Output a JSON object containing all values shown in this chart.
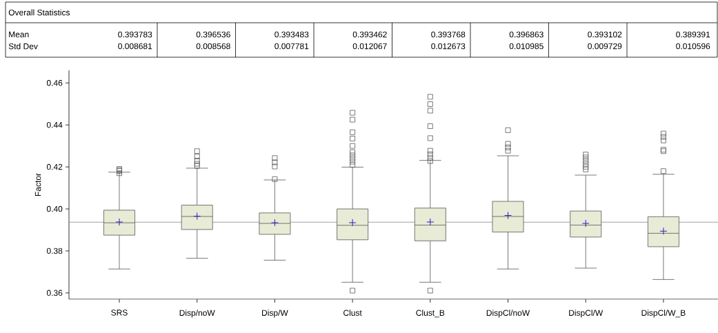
{
  "chart_data": {
    "type": "box",
    "ylabel": "Factor",
    "categories": [
      "SRS",
      "Disp/noW",
      "Disp/W",
      "Clust",
      "Clust_B",
      "DispCl/noW",
      "DispCl/W",
      "DispCl/W_B"
    ],
    "series": [
      {
        "color": "#e8ebd5",
        "boxes": [
          {
            "low": 0.3714,
            "q1": 0.3875,
            "median": 0.3934,
            "q3": 0.3994,
            "high": 0.4175,
            "mean": 0.393783,
            "outliers": [
              0.419,
              0.4185,
              0.418,
              0.417
            ]
          },
          {
            "low": 0.3765,
            "q1": 0.3902,
            "median": 0.3964,
            "q3": 0.4018,
            "high": 0.4194,
            "mean": 0.396536,
            "outliers": [
              0.4275,
              0.425,
              0.423,
              0.4215,
              0.4205
            ]
          },
          {
            "low": 0.3756,
            "q1": 0.3879,
            "median": 0.3931,
            "q3": 0.3981,
            "high": 0.4138,
            "mean": 0.393483,
            "outliers": [
              0.4242,
              0.4222,
              0.4202,
              0.4142
            ]
          },
          {
            "low": 0.3651,
            "q1": 0.3853,
            "median": 0.3922,
            "q3": 0.4,
            "high": 0.4199,
            "mean": 0.393462,
            "outliers": [
              0.3611,
              0.4458,
              0.4425,
              0.4365,
              0.4335,
              0.43,
              0.427,
              0.4255,
              0.424,
              0.4225,
              0.421
            ]
          },
          {
            "low": 0.3651,
            "q1": 0.3848,
            "median": 0.3923,
            "q3": 0.4004,
            "high": 0.4231,
            "mean": 0.393768,
            "outliers": [
              0.3611,
              0.4534,
              0.4499,
              0.4468,
              0.4394,
              0.4337,
              0.4277,
              0.426,
              0.4244,
              0.4228
            ]
          },
          {
            "low": 0.3714,
            "q1": 0.389,
            "median": 0.3964,
            "q3": 0.4036,
            "high": 0.4253,
            "mean": 0.396863,
            "outliers": [
              0.4375,
              0.431,
              0.4293,
              0.4277
            ]
          },
          {
            "low": 0.3718,
            "q1": 0.3866,
            "median": 0.3923,
            "q3": 0.399,
            "high": 0.4161,
            "mean": 0.393102,
            "outliers": [
              0.4259,
              0.4245,
              0.423,
              0.4215,
              0.4201,
              0.4188
            ]
          },
          {
            "low": 0.3664,
            "q1": 0.382,
            "median": 0.3884,
            "q3": 0.3963,
            "high": 0.4165,
            "mean": 0.389391,
            "outliers": [
              0.418,
              0.4282,
              0.4275,
              0.4359,
              0.4343,
              0.4326
            ]
          }
        ]
      }
    ],
    "ylim": [
      0.357,
      0.466
    ],
    "yticks": [
      {
        "value": 0.36,
        "label": "0.36"
      },
      {
        "value": 0.38,
        "label": "0.38"
      },
      {
        "value": 0.4,
        "label": "0.40"
      },
      {
        "value": 0.42,
        "label": "0.42"
      },
      {
        "value": 0.44,
        "label": "0.44"
      },
      {
        "value": 0.46,
        "label": "0.46"
      }
    ],
    "ref_lines": [
      {
        "axis": "y",
        "value": 0.3937,
        "color": "#808080"
      }
    ],
    "annotations": [
      "Overall Statistics",
      "Mean",
      "0.393783",
      "0.396536",
      "0.393483",
      "0.393462",
      "0.393768",
      "0.396863",
      "0.393102",
      "0.389391",
      "Std Dev",
      "0.008681",
      "0.008568",
      "0.007781",
      "0.012067",
      "0.012673",
      "0.010985",
      "0.009729",
      "0.010596"
    ]
  }
}
